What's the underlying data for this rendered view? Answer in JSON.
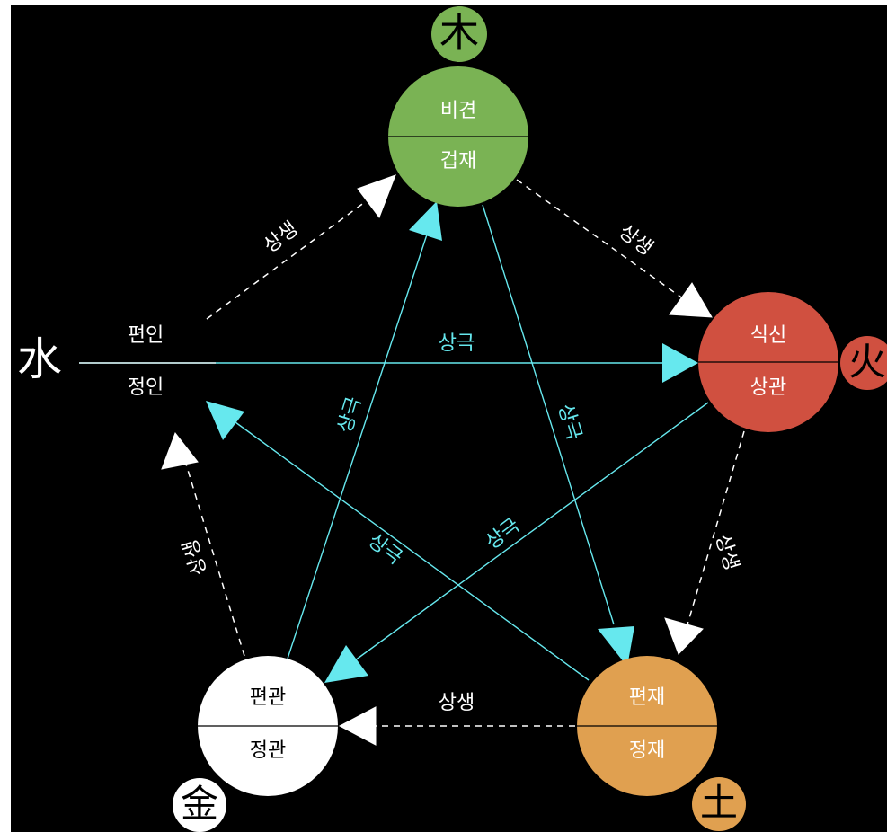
{
  "colors": {
    "background": "#000000",
    "wood": "#7ab354",
    "fire": "#d05040",
    "earth": "#e0a050",
    "metal": "#ffffff",
    "generating_line": "#ffffff",
    "controlling_line": "#66e8ee"
  },
  "elements": {
    "wood": {
      "symbol": "木",
      "top": "비견",
      "bottom": "겁재"
    },
    "fire": {
      "symbol": "火",
      "top": "식신",
      "bottom": "상관"
    },
    "earth": {
      "symbol": "土",
      "top": "편재",
      "bottom": "정재"
    },
    "metal": {
      "symbol": "金",
      "top": "편관",
      "bottom": "정관"
    },
    "water": {
      "symbol": "水",
      "top": "편인",
      "bottom": "정인"
    }
  },
  "relations": {
    "generating": "상생",
    "controlling": "상극"
  }
}
